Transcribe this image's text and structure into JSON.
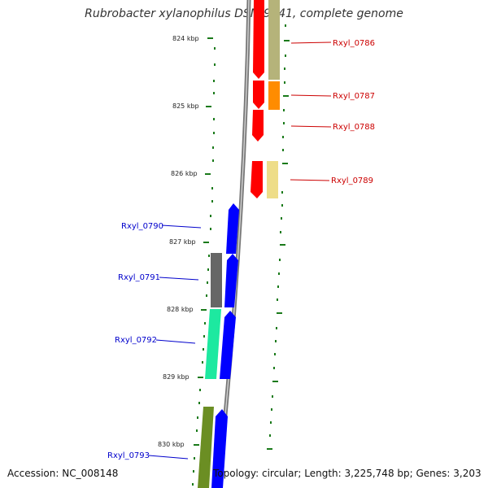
{
  "title": "Rubrobacter xylanophilus DSM 9941, complete genome",
  "accession": "Accession: NC_008148",
  "topology": "Topology: circular; Length: 3,225,748 bp; Genes: 3,203",
  "colors": {
    "backbone": "#808080",
    "forward_cds": "#0000ff",
    "reverse_cds": "#ff0000",
    "tick": "#1a7a1a",
    "forward_label": "#0000cc",
    "reverse_label": "#cc0000"
  },
  "kbp_labels": [
    "824 kbp",
    "825 kbp",
    "826 kbp",
    "827 kbp",
    "828 kbp",
    "829 kbp",
    "830 kbp"
  ],
  "gene_labels": {
    "reverse": [
      "Rxyl_0786",
      "Rxyl_0787",
      "Rxyl_0788",
      "Rxyl_0789"
    ],
    "forward": [
      "Rxyl_0790",
      "Rxyl_0791",
      "Rxyl_0792",
      "Rxyl_0793"
    ]
  }
}
